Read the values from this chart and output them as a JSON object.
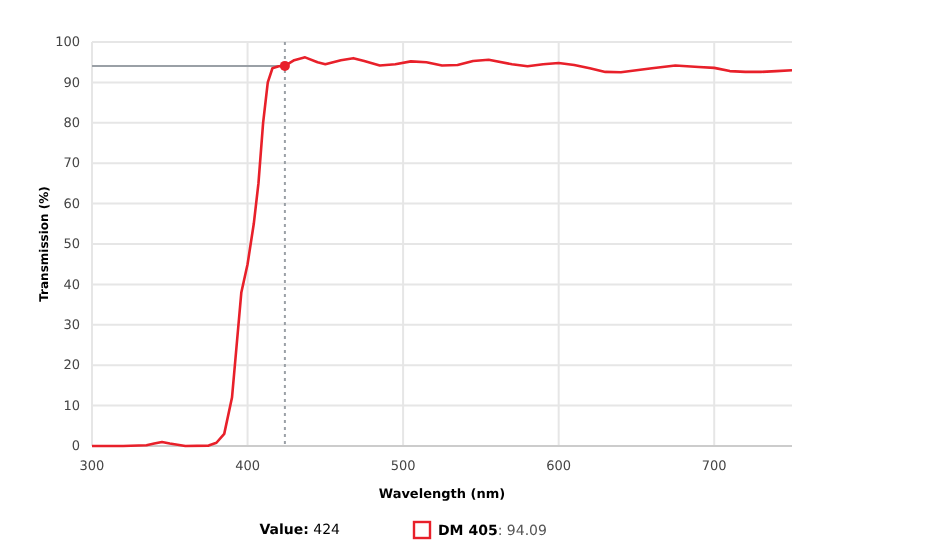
{
  "chart_data": {
    "type": "line",
    "xlabel": "Wavelength (nm)",
    "ylabel": "Transmission (%)",
    "xlim": [
      300,
      750
    ],
    "xticks": [
      300,
      400,
      500,
      600,
      700
    ],
    "ylim": [
      0,
      100
    ],
    "yticks": [
      0,
      10,
      20,
      30,
      40,
      50,
      60,
      70,
      80,
      90,
      100
    ],
    "grid": true,
    "legend": "bottom",
    "marker": "none",
    "line_style": "solid",
    "series": [
      {
        "name": "DM 405",
        "color": "#e8202a",
        "x": [
          300,
          320,
          335,
          340,
          345,
          350,
          360,
          375,
          380,
          385,
          390,
          393,
          396,
          400,
          404,
          407,
          410,
          413,
          416,
          420,
          424,
          430,
          437,
          445,
          450,
          460,
          468,
          475,
          485,
          495,
          505,
          515,
          525,
          535,
          545,
          555,
          570,
          580,
          590,
          600,
          610,
          620,
          630,
          640,
          650,
          660,
          675,
          690,
          700,
          710,
          720,
          730,
          740,
          750
        ],
        "values": [
          0,
          0,
          0.2,
          0.6,
          1,
          0.6,
          0,
          0.1,
          0.8,
          3,
          12,
          25,
          38,
          45,
          55,
          65,
          80,
          90,
          93.5,
          94,
          94.1,
          95.5,
          96.2,
          95,
          94.5,
          95.5,
          96,
          95.3,
          94.2,
          94.5,
          95.2,
          95,
          94.2,
          94.3,
          95.3,
          95.6,
          94.5,
          94,
          94.5,
          94.8,
          94.3,
          93.5,
          92.6,
          92.5,
          93,
          93.5,
          94.2,
          93.8,
          93.6,
          92.8,
          92.6,
          92.6,
          92.8,
          93
        ]
      },
      {
        "type": "scatter",
        "color": "#e8202a",
        "x": [
          424
        ],
        "values": [
          94.09
        ],
        "marker": "circle"
      }
    ],
    "ref_lines": [
      {
        "axis": "x",
        "value": 424,
        "color": "#9aa0a6",
        "line_style": "dotted"
      },
      {
        "axis": "y",
        "value": 94.09,
        "color": "#9aa0a6",
        "line_style": "solid"
      }
    ],
    "annotations": [
      "Value: 424",
      ": 94.09"
    ]
  }
}
